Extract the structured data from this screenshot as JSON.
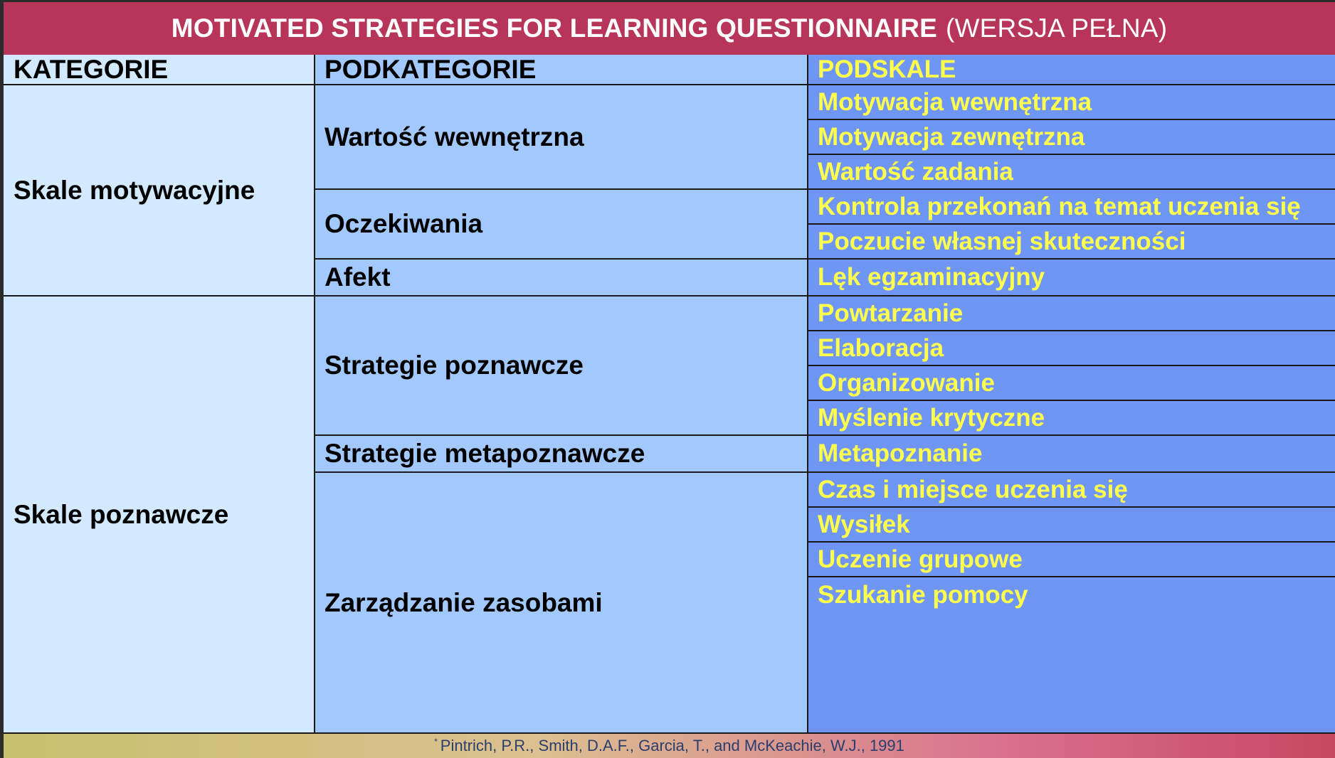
{
  "title": {
    "main": "MOTIVATED STRATEGIES FOR LEARNING QUESTIONNAIRE",
    "sub": "(WERSJA PEŁNA)"
  },
  "headers": {
    "kategorie": "KATEGORIE",
    "podkategorie": "PODKATEGORIE",
    "podskale": "PODSKALE"
  },
  "kategorie": [
    "Skale motywacyjne",
    "Skale poznawcze"
  ],
  "podkategorie": [
    "Wartość wewnętrzna",
    "Oczekiwania",
    "Afekt",
    "Strategie poznawcze",
    "Strategie metapoznawcze",
    "Zarządzanie zasobami"
  ],
  "podskale": [
    "Motywacja wewnętrzna",
    "Motywacja zewnętrzna",
    "Wartość zadania",
    "Kontrola przekonań na temat uczenia się",
    "Poczucie własnej skuteczności",
    "Lęk egzaminacyjny",
    "Powtarzanie",
    "Elaboracja",
    "Organizowanie",
    "Myślenie krytyczne",
    "Metapoznanie",
    "Czas i miejsce uczenia się",
    "Wysiłek",
    "Uczenie grupowe",
    "Szukanie pomocy"
  ],
  "footer": {
    "mark": "*",
    "citation": "Pintrich, P.R., Smith, D.A.F., Garcia, T., and McKeachie, W.J., 1991"
  },
  "colors": {
    "title_bg": "#b8355a",
    "col1_bg": "#d3eafe",
    "col2_bg": "#a3c8fb",
    "col3_bg": "#6f96f5",
    "col3_text": "#ffff4d"
  }
}
